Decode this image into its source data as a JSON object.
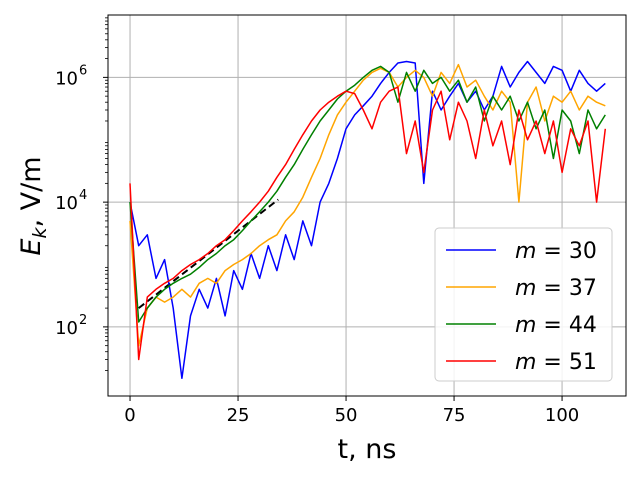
{
  "chart_data": {
    "type": "line",
    "title": "",
    "xlabel": "t, ns",
    "ylabel": {
      "base": "E",
      "sub": "k",
      "rest": ", V/m"
    },
    "xlim": [
      -5.1,
      114.8
    ],
    "ylim": [
      7.8,
      10000000.0
    ],
    "yscale": "log",
    "grid": true,
    "legend_position": "lower-right",
    "xticks": [
      "0",
      "25",
      "50",
      "75",
      "100"
    ],
    "xtick_values": [
      0,
      25,
      50,
      75,
      100
    ],
    "yticks": [
      {
        "base": "10",
        "exp": "2"
      },
      {
        "base": "10",
        "exp": "4"
      },
      {
        "base": "10",
        "exp": "6"
      }
    ],
    "ytick_values": [
      100,
      10000,
      1000000
    ],
    "x": [
      0,
      2,
      4,
      6,
      8,
      10,
      12,
      14,
      16,
      18,
      20,
      22,
      24,
      26,
      28,
      30,
      32,
      34,
      36,
      38,
      40,
      42,
      44,
      46,
      48,
      50,
      52,
      54,
      56,
      58,
      60,
      62,
      64,
      66,
      68,
      70,
      72,
      74,
      76,
      78,
      80,
      82,
      84,
      86,
      88,
      90,
      92,
      94,
      96,
      98,
      100,
      102,
      104,
      106,
      108,
      110
    ],
    "series": [
      {
        "name": "m = 30",
        "label_var": "m",
        "label_val": "30",
        "color": "#0000ff",
        "values": [
          10000.0,
          2000.0,
          3000.0,
          600.0,
          1200.0,
          200.0,
          15.0,
          150.0,
          400.0,
          200.0,
          600.0,
          150.0,
          800.0,
          400.0,
          1500.0,
          600.0,
          2000.0,
          800.0,
          3000.0,
          1200.0,
          5000.0,
          2000.0,
          10000.0,
          20000.0,
          50000.0,
          150000.0,
          250000.0,
          350000.0,
          500000.0,
          800000.0,
          1200000.0,
          1700000.0,
          1800000.0,
          1700000.0,
          20000.0,
          600000.0,
          300000.0,
          500000.0,
          800000.0,
          400000.0,
          600000.0,
          300000.0,
          500000.0,
          1500000.0,
          700000.0,
          1200000.0,
          1800000.0,
          1200000.0,
          800000.0,
          1500000.0,
          1300000.0,
          600000.0,
          1300000.0,
          800000.0,
          600000.0,
          800000.0
        ]
      },
      {
        "name": "m = 37",
        "label_var": "m",
        "label_val": "37",
        "color": "#ffa500",
        "values": [
          5000.0,
          50.0,
          200.0,
          300.0,
          250.0,
          300.0,
          400.0,
          300.0,
          500.0,
          600.0,
          500.0,
          800.0,
          1000.0,
          1200.0,
          1500.0,
          2000.0,
          2500.0,
          3000.0,
          5000.0,
          7000.0,
          12000.0,
          25000.0,
          50000.0,
          120000.0,
          250000.0,
          400000.0,
          600000.0,
          900000.0,
          1200000.0,
          1400000.0,
          1200000.0,
          700000.0,
          1000000.0,
          1300000.0,
          1000000.0,
          500000.0,
          1200000.0,
          800000.0,
          1600000.0,
          700000.0,
          900000.0,
          500000.0,
          300000.0,
          600000.0,
          400000.0,
          10000.0,
          400000.0,
          700000.0,
          200000.0,
          500000.0,
          400000.0,
          600000.0,
          300000.0,
          500000.0,
          400000.0,
          350000.0
        ]
      },
      {
        "name": "m = 44",
        "label_var": "m",
        "label_val": "44",
        "color": "#008000",
        "values": [
          10000.0,
          120.0,
          200.0,
          300.0,
          400.0,
          500.0,
          600.0,
          700.0,
          900.0,
          1200.0,
          1500.0,
          2000.0,
          2500.0,
          3500.0,
          5000.0,
          7000.0,
          10000.0,
          15000.0,
          25000.0,
          40000.0,
          70000.0,
          120000.0,
          200000.0,
          300000.0,
          450000.0,
          600000.0,
          750000.0,
          1000000.0,
          1300000.0,
          1500000.0,
          1200000.0,
          400000.0,
          1200000.0,
          600000.0,
          1300000.0,
          800000.0,
          1000000.0,
          600000.0,
          900000.0,
          400000.0,
          700000.0,
          200000.0,
          500000.0,
          300000.0,
          500000.0,
          200000.0,
          400000.0,
          150000.0,
          300000.0,
          50000.0,
          300000.0,
          200000.0,
          60000.0,
          300000.0,
          150000.0,
          250000.0
        ]
      },
      {
        "name": "m = 51",
        "label_var": "m",
        "label_val": "51",
        "color": "#ff0000",
        "values": [
          20000.0,
          30.0,
          300.0,
          400.0,
          500.0,
          600.0,
          800.0,
          1000.0,
          1200.0,
          1500.0,
          2000.0,
          2500.0,
          3500.0,
          5000.0,
          7000.0,
          10000.0,
          15000.0,
          25000.0,
          40000.0,
          70000.0,
          120000.0,
          200000.0,
          300000.0,
          400000.0,
          500000.0,
          600000.0,
          550000.0,
          300000.0,
          150000.0,
          400000.0,
          600000.0,
          700000.0,
          60000.0,
          200000.0,
          30000.0,
          300000.0,
          600000.0,
          100000.0,
          400000.0,
          200000.0,
          50000.0,
          300000.0,
          80000.0,
          200000.0,
          40000.0,
          300000.0,
          100000.0,
          200000.0,
          60000.0,
          200000.0,
          30000.0,
          150000.0,
          80000.0,
          200000.0,
          10000.0,
          150000.0
        ]
      }
    ],
    "fit_line": {
      "color": "#000000",
      "style": "dashed",
      "x": [
        2,
        34.3
      ],
      "y": [
        200,
        11000
      ]
    }
  }
}
